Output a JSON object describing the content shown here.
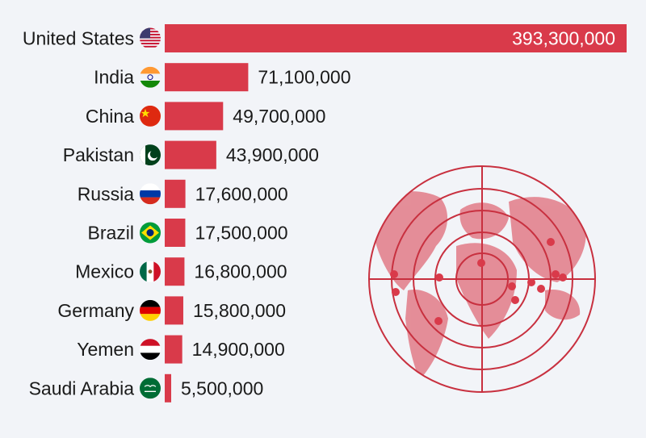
{
  "chart_data": {
    "type": "bar",
    "orientation": "horizontal",
    "categories": [
      "United States",
      "India",
      "China",
      "Pakistan",
      "Russia",
      "Brazil",
      "Mexico",
      "Germany",
      "Yemen",
      "Saudi Arabia"
    ],
    "values": [
      393300000,
      71100000,
      49700000,
      43900000,
      17600000,
      17500000,
      16800000,
      15800000,
      14900000,
      5500000
    ],
    "value_labels": [
      "393,300,000",
      "71,100,000",
      "49,700,000",
      "43,900,000",
      "17,600,000",
      "17,500,000",
      "16,800,000",
      "15,800,000",
      "14,900,000",
      "5,500,000"
    ],
    "flag_icons": [
      "flag-usa-icon",
      "flag-india-icon",
      "flag-china-icon",
      "flag-pakistan-icon",
      "flag-russia-icon",
      "flag-brazil-icon",
      "flag-mexico-icon",
      "flag-germany-icon",
      "flag-yemen-icon",
      "flag-saudi-arabia-icon"
    ],
    "xlim": [
      0,
      393300000
    ],
    "grid": false,
    "bar_color": "#d93a4a"
  },
  "decoration": {
    "map_color": "#d93a4a",
    "target_color": "#c8303f"
  }
}
